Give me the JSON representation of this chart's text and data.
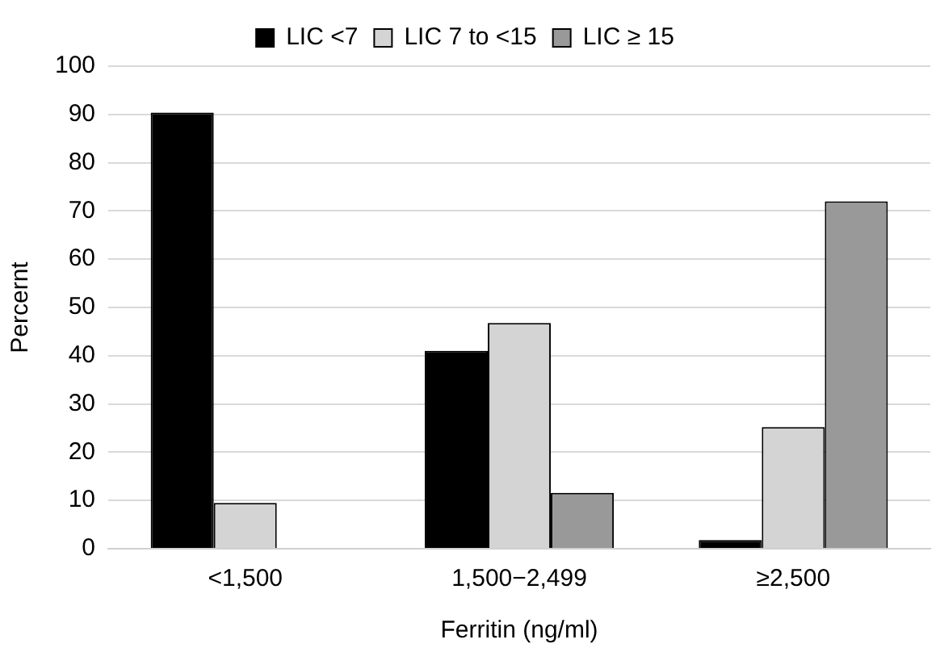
{
  "chart_data": {
    "type": "bar",
    "xlabel": "Ferritin (ng/ml)",
    "ylabel": "Percernt",
    "categories": [
      "<1,500",
      "1,500−2,499",
      "≥2,500"
    ],
    "series": [
      {
        "name": "LIC <7",
        "color": "#000000",
        "values": [
          90.4,
          41,
          1.8
        ]
      },
      {
        "name": "LIC 7 to <15",
        "color": "#d4d4d4",
        "values": [
          9.5,
          46.8,
          25.2
        ]
      },
      {
        "name": "LIC ≥ 15",
        "color": "#999999",
        "values": [
          0,
          11.6,
          72
        ]
      }
    ],
    "ylim": [
      0,
      100
    ],
    "yticks": [
      0,
      10,
      20,
      30,
      40,
      50,
      60,
      70,
      80,
      90,
      100
    ],
    "grid": "y",
    "legend": "top"
  }
}
